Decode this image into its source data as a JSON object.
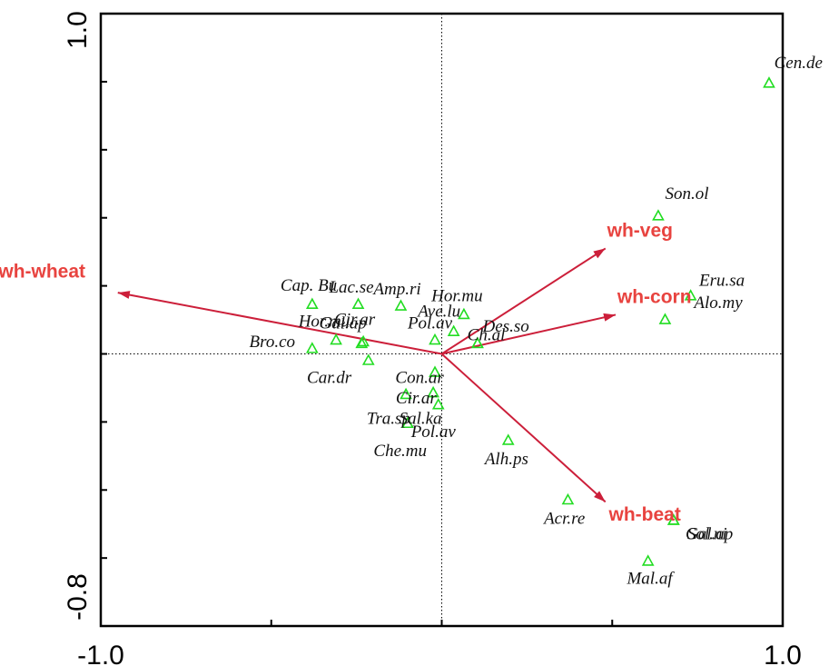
{
  "chart_data": {
    "type": "scatter",
    "subtype": "ordination-biplot",
    "title": "",
    "xlabel": "",
    "ylabel": "",
    "xlim": [
      -1.0,
      1.0
    ],
    "ylim": [
      -0.8,
      1.0
    ],
    "x_tick_labels": [
      {
        "value": -1.0,
        "label": "-1.0"
      },
      {
        "value": 1.0,
        "label": "1.0"
      }
    ],
    "y_tick_labels": [
      {
        "value": 1.0,
        "label": "1.0"
      },
      {
        "value": -0.8,
        "label": "-0.8"
      }
    ],
    "x_minor_ticks": [
      -1.0,
      -0.5,
      0.0,
      0.5,
      1.0
    ],
    "y_minor_ticks": [
      1.0,
      0.8,
      0.6,
      0.4,
      0.2,
      0.0,
      -0.2,
      -0.4,
      -0.6,
      -0.8
    ],
    "reference_lines": {
      "x": 0.0,
      "y": 0.0,
      "style": "dotted"
    },
    "colors": {
      "species_marker": "#22dd22",
      "arrow": "#cc1f3a",
      "arrow_label": "#e8433f"
    },
    "environmental_arrows": [
      {
        "label": "wh-wheat",
        "x": -0.95,
        "y": 0.18
      },
      {
        "label": "wh-veg",
        "x": 0.48,
        "y": 0.31
      },
      {
        "label": "wh-corn",
        "x": 0.51,
        "y": 0.115
      },
      {
        "label": "wh-beat",
        "x": 0.48,
        "y": -0.435
      }
    ],
    "species": [
      {
        "label": "Cen.de",
        "x": 0.96,
        "y": 0.795
      },
      {
        "label": "Son.ol",
        "x": 0.635,
        "y": 0.405
      },
      {
        "label": "Eru.sa",
        "x": 0.73,
        "y": 0.17
      },
      {
        "label": "Alo.my",
        "x": 0.655,
        "y": 0.1
      },
      {
        "label": "Acr.re",
        "x": 0.37,
        "y": -0.43
      },
      {
        "label": "Gal.ap",
        "x": 0.68,
        "y": -0.49
      },
      {
        "label": "Sol.ni",
        "x": 0.68,
        "y": -0.49
      },
      {
        "label": "Mal.af",
        "x": 0.605,
        "y": -0.61
      },
      {
        "label": "Alh.ps",
        "x": 0.195,
        "y": -0.255
      },
      {
        "label": "Des.so",
        "x": 0.105,
        "y": 0.03
      },
      {
        "label": "Ch.al",
        "x": 0.105,
        "y": 0.03
      },
      {
        "label": "Hor.mu",
        "x": 0.065,
        "y": 0.115
      },
      {
        "label": "Ave.lu",
        "x": 0.035,
        "y": 0.065
      },
      {
        "label": "Pol.av",
        "x": -0.02,
        "y": 0.04
      },
      {
        "label": "Con.ar",
        "x": -0.02,
        "y": -0.055
      },
      {
        "label": "Cir.ar",
        "x": -0.025,
        "y": -0.115
      },
      {
        "label": "Tra.sp",
        "x": -0.105,
        "y": -0.12
      },
      {
        "label": "Sal.ka",
        "x": -0.01,
        "y": -0.15
      },
      {
        "label": "Pol.av",
        "x": -0.1,
        "y": -0.205
      },
      {
        "label": "Che.mu",
        "x": -0.1,
        "y": -0.205
      },
      {
        "label": "Amp.ri",
        "x": -0.12,
        "y": 0.14
      },
      {
        "label": "Lac.se",
        "x": -0.245,
        "y": 0.145
      },
      {
        "label": "Cap.Bu",
        "x": -0.38,
        "y": 0.145
      },
      {
        "label": "Hor.mu",
        "x": -0.31,
        "y": 0.04
      },
      {
        "label": "Cir.ar",
        "x": -0.235,
        "y": 0.03
      },
      {
        "label": "Gal.ap",
        "x": -0.23,
        "y": 0.035
      },
      {
        "label": "Bro.co",
        "x": -0.38,
        "y": 0.015
      },
      {
        "label": "Car.dr",
        "x": -0.215,
        "y": -0.02
      }
    ],
    "species_labels": [
      {
        "text": "Cen.de",
        "x": 0.975,
        "y": 0.84,
        "anchor": "start"
      },
      {
        "text": "Son.ol",
        "x": 0.655,
        "y": 0.455,
        "anchor": "start"
      },
      {
        "text": "Eru.sa",
        "x": 0.755,
        "y": 0.2,
        "anchor": "start"
      },
      {
        "text": "Alo.my",
        "x": 0.74,
        "y": 0.135,
        "anchor": "start"
      },
      {
        "text": "Acr.re",
        "x": 0.36,
        "y": -0.5,
        "anchor": "middle"
      },
      {
        "text": "Gal.ap",
        "x": 0.715,
        "y": -0.545,
        "anchor": "start"
      },
      {
        "text": "Sol.ni",
        "x": 0.72,
        "y": -0.545,
        "anchor": "start"
      },
      {
        "text": "Mal.af",
        "x": 0.61,
        "y": -0.675,
        "anchor": "middle"
      },
      {
        "text": "Alh.ps",
        "x": 0.19,
        "y": -0.325,
        "anchor": "middle"
      },
      {
        "text": "Des.so",
        "x": 0.12,
        "y": 0.065,
        "anchor": "start"
      },
      {
        "text": "Ch.al",
        "x": 0.075,
        "y": 0.04,
        "anchor": "start"
      },
      {
        "text": "Hor.mu",
        "x": 0.045,
        "y": 0.155,
        "anchor": "middle"
      },
      {
        "text": "Ave.lu",
        "x": -0.07,
        "y": 0.11,
        "anchor": "start"
      },
      {
        "text": "Pol.av",
        "x": -0.1,
        "y": 0.075,
        "anchor": "start"
      },
      {
        "text": "Con.ar",
        "x": -0.065,
        "y": -0.085,
        "anchor": "middle"
      },
      {
        "text": "Cir.ar",
        "x": -0.075,
        "y": -0.145,
        "anchor": "middle"
      },
      {
        "text": "Tra.sp",
        "x": -0.22,
        "y": -0.205,
        "anchor": "start"
      },
      {
        "text": "Sal.ka",
        "x": -0.125,
        "y": -0.205,
        "anchor": "start"
      },
      {
        "text": "Pol.av",
        "x": -0.09,
        "y": -0.245,
        "anchor": "start"
      },
      {
        "text": "Che.mu",
        "x": -0.2,
        "y": -0.3,
        "anchor": "start"
      },
      {
        "text": "Amp.ri",
        "x": -0.2,
        "y": 0.175,
        "anchor": "start"
      },
      {
        "text": "Lac.se",
        "x": -0.265,
        "y": 0.18,
        "anchor": "middle"
      },
      {
        "text": "Cap. Bu",
        "x": -0.39,
        "y": 0.185,
        "anchor": "middle"
      },
      {
        "text": "Hor.mu",
        "x": -0.345,
        "y": 0.08,
        "anchor": "middle"
      },
      {
        "text": "Cir.ar",
        "x": -0.315,
        "y": 0.085,
        "anchor": "start"
      },
      {
        "text": "Gal.ap",
        "x": -0.29,
        "y": 0.075,
        "anchor": "middle"
      },
      {
        "text": "Bro.co",
        "x": -0.43,
        "y": 0.02,
        "anchor": "end"
      },
      {
        "text": "Car.dr",
        "x": -0.33,
        "y": -0.085,
        "anchor": "middle"
      }
    ],
    "arrow_labels": [
      {
        "text": "wh-wheat",
        "x": -1.3,
        "y": 0.225,
        "anchor": "start"
      },
      {
        "text": "wh-veg",
        "x": 0.485,
        "y": 0.345,
        "anchor": "start"
      },
      {
        "text": "wh-corn",
        "x": 0.515,
        "y": 0.15,
        "anchor": "start"
      },
      {
        "text": "wh-beat",
        "x": 0.49,
        "y": -0.49,
        "anchor": "start"
      }
    ]
  }
}
